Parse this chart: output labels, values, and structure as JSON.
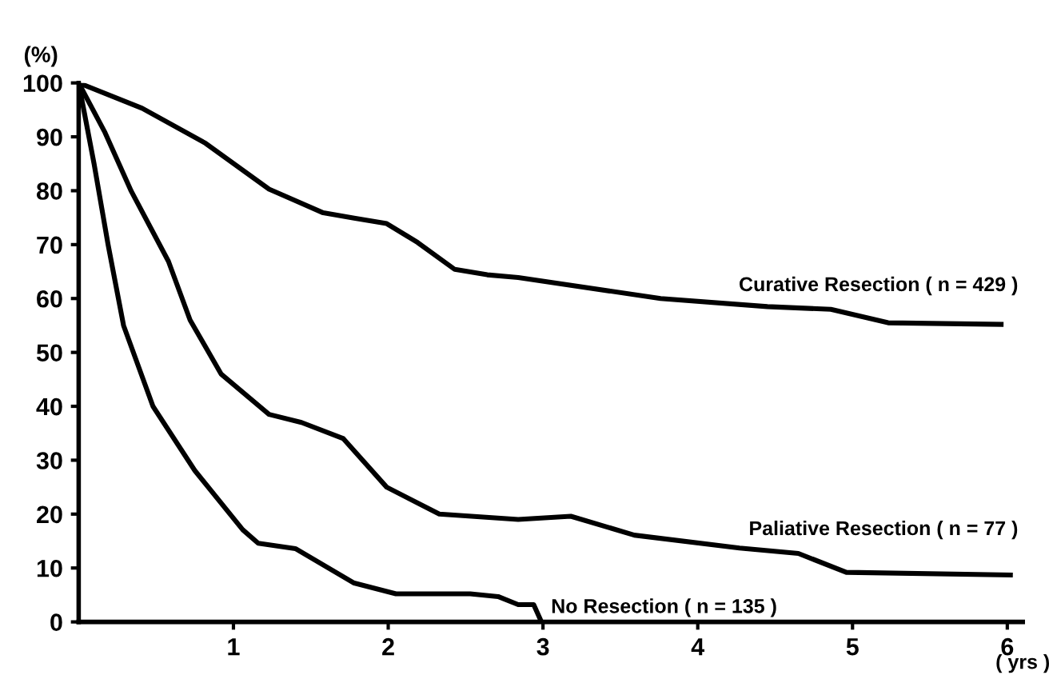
{
  "chart_data": {
    "type": "line",
    "xlabel": "( yrs )",
    "ylabel": "(%)",
    "xlim": [
      0,
      6.1
    ],
    "ylim": [
      0,
      100
    ],
    "xticks": [
      1,
      2,
      3,
      4,
      5,
      6
    ],
    "yticks": [
      0,
      10,
      20,
      30,
      40,
      50,
      60,
      70,
      80,
      90,
      100
    ],
    "grid": false,
    "legend": false,
    "marker": "none",
    "line_style": "solid",
    "series": [
      {
        "name": "Curative Resection ( n = 429 )",
        "color": "#000000",
        "x": [
          0,
          0.41,
          0.82,
          1.23,
          1.58,
          1.78,
          1.99,
          2.19,
          2.43,
          2.64,
          2.84,
          3.76,
          4.45,
          4.86,
          5.23,
          5.96
        ],
        "values": [
          100,
          95.3,
          88.8,
          80.3,
          75.9,
          74.9,
          73.9,
          70.4,
          65.4,
          64.4,
          63.9,
          60,
          58.5,
          58,
          55.5,
          55.2
        ]
      },
      {
        "name": "Paliative Resection ( n = 77 )",
        "color": "#000000",
        "x": [
          0,
          0.17,
          0.34,
          0.58,
          0.72,
          0.92,
          1.23,
          1.44,
          1.71,
          1.99,
          2.33,
          2.84,
          3.18,
          3.59,
          4.27,
          4.65,
          4.96,
          6.02
        ],
        "values": [
          100,
          90.8,
          79.9,
          66.9,
          56,
          46,
          38.5,
          37,
          34,
          25,
          20,
          19,
          19.6,
          16.1,
          13.7,
          12.7,
          9.2,
          8.7
        ]
      },
      {
        "name": "No Resection ( n = 135 )",
        "color": "#000000",
        "x": [
          0,
          0.1,
          0.19,
          0.29,
          0.48,
          0.75,
          1.06,
          1.16,
          1.4,
          1.78,
          2.05,
          2.53,
          2.71,
          2.84,
          2.94,
          2.99
        ],
        "values": [
          100,
          84.9,
          70,
          55,
          40,
          28.1,
          17.1,
          14.6,
          13.6,
          7.2,
          5.2,
          5.2,
          4.7,
          3.2,
          3.2,
          0
        ]
      }
    ]
  }
}
